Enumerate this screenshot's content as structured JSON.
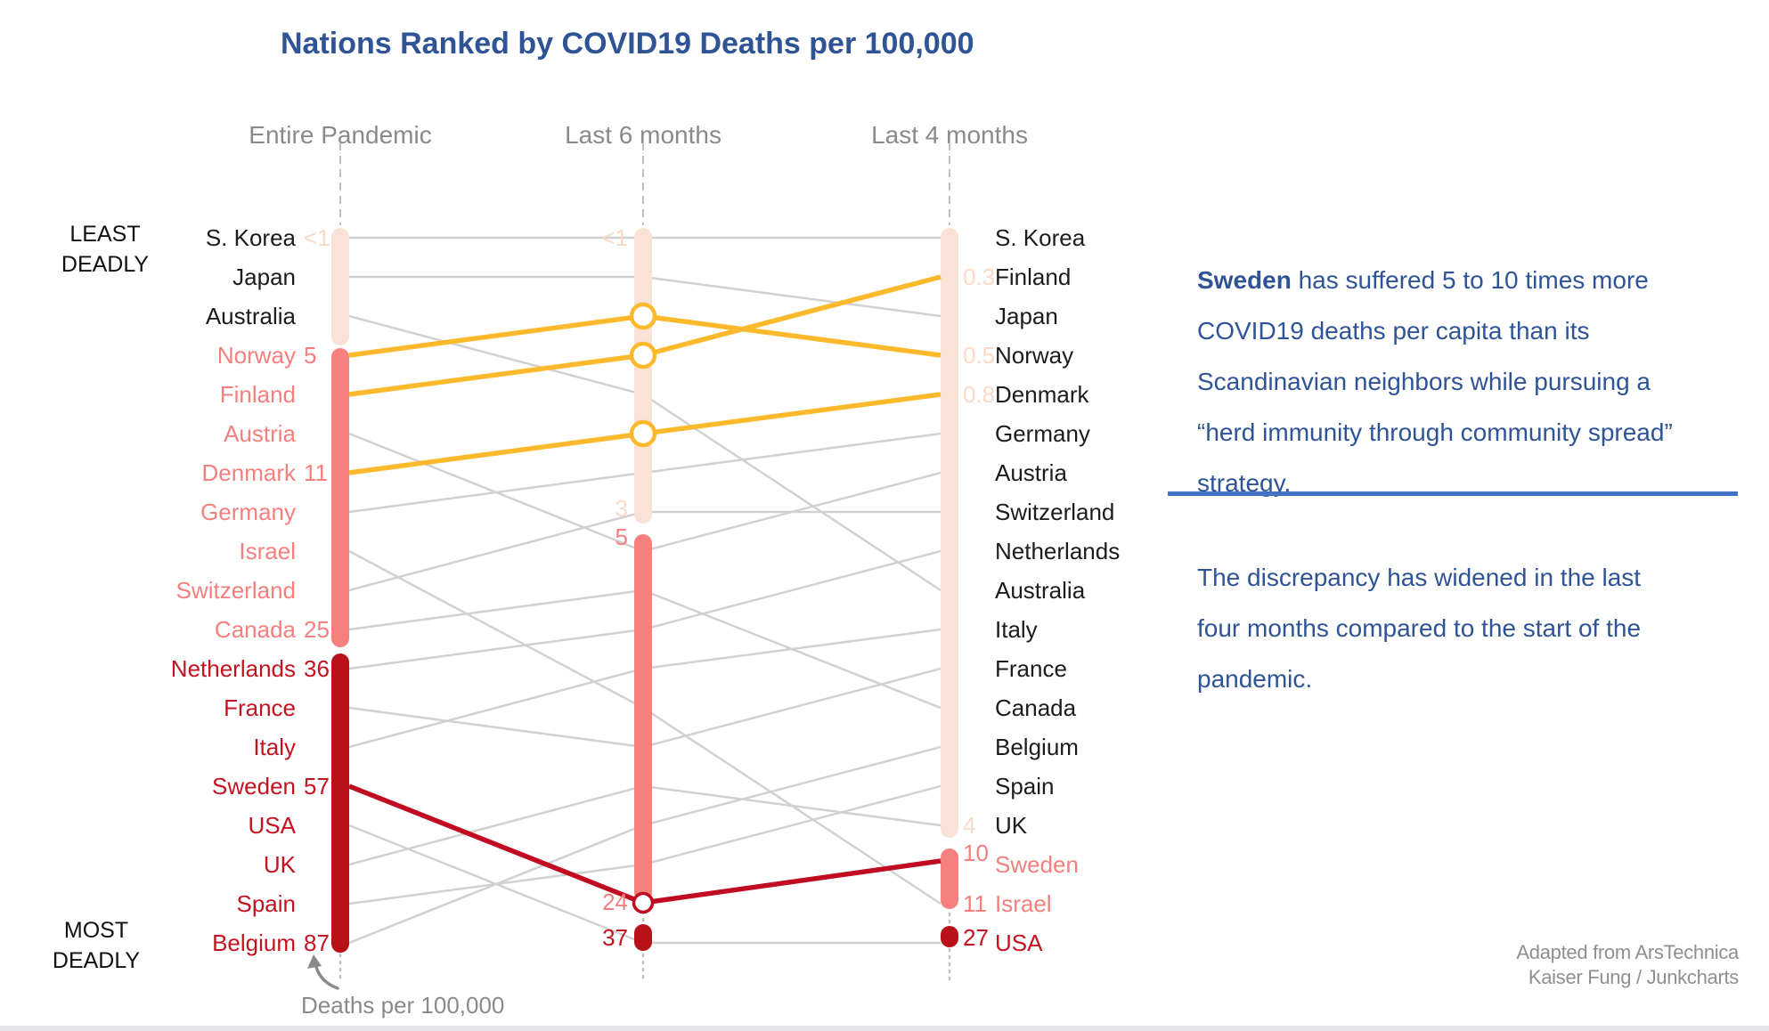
{
  "title": "Nations Ranked by COVID19 Deaths per 100,000",
  "rank_labels": {
    "least": "LEAST\nDEADLY",
    "most": "MOST\nDEADLY"
  },
  "footnote": "Deaths per 100,000",
  "attribution": "Adapted from ArsTechnica\nKaiser Fung / Junkcharts",
  "annotation": {
    "p1_bold": "Sweden",
    "p1_rest": " has suffered 5 to 10 times more\nCOVID19 deaths per capita than its\nScandinavian neighbors while pursuing a\n“herd immunity through community spread”\nstrategy.",
    "p2": "The discrepancy has widened in the last\nfour months compared to the start of the\npandemic."
  },
  "colors": {
    "peach_bar": "#FAE3D6",
    "peach_text": "#FADAC6",
    "salmon_bar": "#F5807E",
    "salmon_text": "#F4807E",
    "darkred_bar": "#B91119",
    "darkred_text": "#C41320",
    "yellow_line": "#FDB92C",
    "red_line": "#C00B20",
    "gray_line": "#D1D1D1",
    "guide_gray": "#BFBFBF",
    "title_blue": "#2F5496",
    "divider_blue": "#4472C4",
    "header_gray": "#8A8A8A"
  },
  "chart_data": {
    "type": "bump",
    "columns": [
      "Entire Pandemic",
      "Last 6 months",
      "Last 4 months"
    ],
    "rank_range": [
      1,
      19
    ],
    "value_unit": "deaths per 100,000",
    "countries": [
      {
        "name": "S. Korea",
        "ranks": [
          1,
          1,
          1
        ],
        "values": [
          "<1",
          "<1",
          null
        ],
        "line": "gray",
        "marker": false
      },
      {
        "name": "Japan",
        "ranks": [
          2,
          2,
          3
        ],
        "values": [
          null,
          null,
          null
        ],
        "line": "gray",
        "marker": false
      },
      {
        "name": "Australia",
        "ranks": [
          3,
          5,
          10
        ],
        "values": [
          null,
          null,
          null
        ],
        "line": "gray",
        "marker": false
      },
      {
        "name": "Norway",
        "ranks": [
          4,
          3,
          4
        ],
        "values": [
          "5",
          null,
          "0.5"
        ],
        "line": "yellow",
        "marker": true
      },
      {
        "name": "Finland",
        "ranks": [
          5,
          4,
          2
        ],
        "values": [
          null,
          null,
          "0.3"
        ],
        "line": "yellow",
        "marker": true
      },
      {
        "name": "Austria",
        "ranks": [
          6,
          9,
          7
        ],
        "values": [
          null,
          "5",
          null
        ],
        "line": "gray",
        "marker": false
      },
      {
        "name": "Denmark",
        "ranks": [
          7,
          6,
          5
        ],
        "values": [
          "11",
          null,
          "0.8"
        ],
        "line": "yellow",
        "marker": true
      },
      {
        "name": "Germany",
        "ranks": [
          8,
          7,
          6
        ],
        "values": [
          null,
          null,
          null
        ],
        "line": "gray",
        "marker": false
      },
      {
        "name": "Israel",
        "ranks": [
          9,
          13,
          18
        ],
        "values": [
          null,
          null,
          "11"
        ],
        "line": "gray",
        "marker": false
      },
      {
        "name": "Switzerland",
        "ranks": [
          10,
          8,
          8
        ],
        "values": [
          null,
          "3",
          null
        ],
        "line": "gray",
        "marker": false
      },
      {
        "name": "Canada",
        "ranks": [
          11,
          10,
          13
        ],
        "values": [
          "25",
          null,
          null
        ],
        "line": "gray",
        "marker": false
      },
      {
        "name": "Netherlands",
        "ranks": [
          12,
          11,
          9
        ],
        "values": [
          "36",
          null,
          null
        ],
        "line": "gray",
        "marker": false
      },
      {
        "name": "France",
        "ranks": [
          13,
          14,
          12
        ],
        "values": [
          null,
          null,
          null
        ],
        "line": "gray",
        "marker": false
      },
      {
        "name": "Italy",
        "ranks": [
          14,
          12,
          11
        ],
        "values": [
          null,
          null,
          null
        ],
        "line": "gray",
        "marker": false
      },
      {
        "name": "Sweden",
        "ranks": [
          15,
          18,
          17
        ],
        "values": [
          "57",
          "24",
          "10"
        ],
        "line": "red",
        "marker": true
      },
      {
        "name": "USA",
        "ranks": [
          16,
          19,
          19
        ],
        "values": [
          null,
          "37",
          "27"
        ],
        "line": "gray",
        "marker": false
      },
      {
        "name": "UK",
        "ranks": [
          17,
          15,
          16
        ],
        "values": [
          null,
          null,
          "4"
        ],
        "line": "gray",
        "marker": false
      },
      {
        "name": "Spain",
        "ranks": [
          18,
          17,
          15
        ],
        "values": [
          null,
          null,
          null
        ],
        "line": "gray",
        "marker": false
      },
      {
        "name": "Belgium",
        "ranks": [
          19,
          16,
          14
        ],
        "values": [
          "87",
          null,
          null
        ],
        "line": "gray",
        "marker": false
      }
    ],
    "bars": {
      "entire": [
        {
          "color": "peach",
          "from": 1,
          "to": 3
        },
        {
          "color": "salmon",
          "from": 4,
          "to": 11
        },
        {
          "color": "darkred",
          "from": 12,
          "to": 19
        }
      ],
      "six": [
        {
          "color": "peach",
          "from": 1,
          "to": 8
        },
        {
          "color": "salmon",
          "from": 9,
          "to": 18
        },
        {
          "color": "darkred",
          "from": 19,
          "to": 19
        }
      ],
      "four": [
        {
          "color": "peach",
          "from": 1,
          "to": 16
        },
        {
          "color": "salmon",
          "from": 17,
          "to": 18
        },
        {
          "color": "darkred",
          "from": 19,
          "to": 19
        }
      ]
    },
    "legend_note": "yellow = Scandinavian neighbors (Norway, Finland, Denmark); dark red emphasized line = Sweden"
  }
}
